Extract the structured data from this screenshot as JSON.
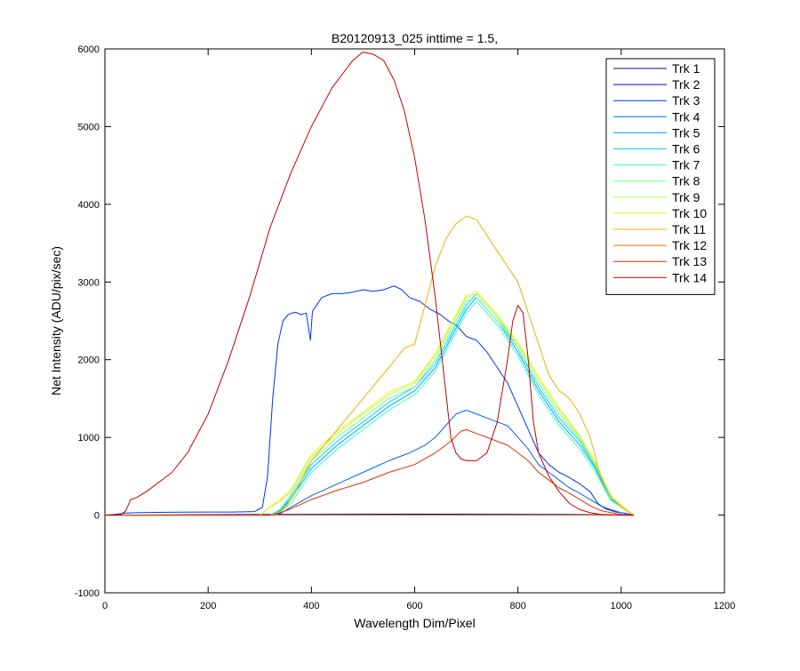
{
  "chart_data": {
    "type": "line",
    "title": "B20120913_025 inttime = 1.5,",
    "xlabel": "Wavelength Dim/Pixel",
    "ylabel": "Net Intensity (ADU/pix/sec)",
    "xlim": [
      0,
      1200
    ],
    "ylim": [
      -1000,
      6000
    ],
    "xticks": [
      0,
      200,
      400,
      600,
      800,
      1000,
      1200
    ],
    "yticks": [
      -1000,
      0,
      1000,
      2000,
      3000,
      4000,
      5000,
      6000
    ],
    "grid": false,
    "legend_position": "top-right",
    "series": [
      {
        "name": "Trk 1",
        "color": "#00008F",
        "x": [
          0,
          300,
          600,
          900,
          1024
        ],
        "y": [
          0,
          5,
          10,
          5,
          0
        ]
      },
      {
        "name": "Trk 2",
        "color": "#0000C8",
        "x": [
          0,
          300,
          600,
          900,
          1024
        ],
        "y": [
          0,
          8,
          12,
          8,
          0
        ]
      },
      {
        "name": "Trk 3",
        "color": "#0030FF",
        "x": [
          0,
          20,
          40,
          60,
          100,
          150,
          200,
          250,
          290,
          305,
          315,
          325,
          335,
          345,
          355,
          362,
          370,
          380,
          390,
          398,
          402,
          410,
          420,
          440,
          460,
          480,
          500,
          520,
          540,
          560,
          575,
          590,
          610,
          630,
          650,
          665,
          680,
          700,
          720,
          740,
          760,
          780,
          800,
          820,
          840,
          860,
          880,
          900,
          920,
          940,
          955,
          970,
          990,
          1010,
          1024
        ],
        "y": [
          0,
          10,
          25,
          30,
          35,
          38,
          40,
          40,
          45,
          100,
          500,
          1500,
          2200,
          2500,
          2580,
          2600,
          2610,
          2580,
          2600,
          2250,
          2620,
          2700,
          2800,
          2850,
          2850,
          2870,
          2900,
          2880,
          2900,
          2950,
          2900,
          2800,
          2750,
          2650,
          2580,
          2500,
          2450,
          2300,
          2250,
          2100,
          1900,
          1700,
          1400,
          1100,
          800,
          650,
          550,
          480,
          400,
          300,
          150,
          80,
          40,
          20,
          0
        ]
      },
      {
        "name": "Trk 4",
        "color": "#0060FF",
        "x": [
          0,
          320,
          340,
          360,
          400,
          450,
          500,
          550,
          590,
          620,
          640,
          660,
          680,
          700,
          720,
          740,
          760,
          780,
          800,
          820,
          840,
          860,
          880,
          900,
          920,
          940,
          960,
          980,
          1000,
          1024
        ],
        "y": [
          0,
          0,
          20,
          100,
          250,
          400,
          550,
          700,
          800,
          900,
          1000,
          1150,
          1300,
          1350,
          1300,
          1250,
          1200,
          1150,
          1000,
          850,
          650,
          550,
          450,
          350,
          280,
          200,
          120,
          70,
          30,
          0
        ]
      },
      {
        "name": "Trk 5",
        "color": "#00A0FF",
        "x": [
          0,
          320,
          340,
          360,
          400,
          450,
          500,
          550,
          600,
          640,
          680,
          700,
          720,
          760,
          800,
          840,
          880,
          920,
          950,
          980,
          1024
        ],
        "y": [
          0,
          0,
          60,
          200,
          600,
          900,
          1150,
          1400,
          1600,
          1900,
          2400,
          2650,
          2800,
          2500,
          2100,
          1600,
          1200,
          900,
          600,
          200,
          0
        ]
      },
      {
        "name": "Trk 6",
        "color": "#00D8F0",
        "x": [
          0,
          320,
          340,
          360,
          400,
          450,
          500,
          550,
          600,
          640,
          680,
          700,
          720,
          760,
          800,
          840,
          880,
          920,
          950,
          980,
          1024
        ],
        "y": [
          0,
          0,
          70,
          230,
          650,
          950,
          1200,
          1450,
          1650,
          1950,
          2450,
          2700,
          2850,
          2550,
          2150,
          1650,
          1250,
          950,
          620,
          210,
          0
        ]
      },
      {
        "name": "Trk 7",
        "color": "#30FFC8",
        "x": [
          0,
          320,
          340,
          360,
          400,
          450,
          500,
          550,
          600,
          640,
          680,
          700,
          720,
          760,
          800,
          840,
          880,
          920,
          950,
          980,
          1024
        ],
        "y": [
          0,
          0,
          40,
          150,
          550,
          850,
          1100,
          1350,
          1550,
          1850,
          2350,
          2600,
          2750,
          2450,
          2050,
          1550,
          1150,
          850,
          560,
          190,
          0
        ]
      },
      {
        "name": "Trk 8",
        "color": "#70FF8C",
        "x": [
          0,
          320,
          340,
          360,
          400,
          450,
          500,
          550,
          600,
          640,
          680,
          700,
          720,
          760,
          800,
          840,
          880,
          920,
          950,
          980,
          1024
        ],
        "y": [
          0,
          0,
          80,
          260,
          700,
          1000,
          1250,
          1500,
          1650,
          2000,
          2500,
          2750,
          2800,
          2500,
          2150,
          1700,
          1300,
          980,
          640,
          220,
          0
        ]
      },
      {
        "name": "Trk 9",
        "color": "#B0FF50",
        "x": [
          0,
          300,
          320,
          340,
          360,
          400,
          450,
          500,
          550,
          600,
          640,
          680,
          700,
          720,
          760,
          800,
          840,
          880,
          920,
          950,
          980,
          1024
        ],
        "y": [
          0,
          0,
          100,
          180,
          300,
          750,
          1050,
          1300,
          1550,
          1700,
          2050,
          2550,
          2800,
          2850,
          2550,
          2200,
          1750,
          1350,
          1000,
          660,
          230,
          0
        ]
      },
      {
        "name": "Trk 10",
        "color": "#F0F010",
        "x": [
          0,
          300,
          320,
          340,
          360,
          400,
          450,
          500,
          550,
          600,
          640,
          680,
          700,
          720,
          760,
          800,
          840,
          880,
          920,
          950,
          980,
          1024
        ],
        "y": [
          0,
          0,
          110,
          200,
          320,
          780,
          1080,
          1320,
          1580,
          1720,
          2080,
          2580,
          2820,
          2880,
          2580,
          2220,
          1780,
          1380,
          1020,
          680,
          240,
          0
        ]
      },
      {
        "name": "Trk 11",
        "color": "#F0B000",
        "x": [
          0,
          330,
          350,
          370,
          400,
          450,
          500,
          550,
          580,
          600,
          620,
          640,
          660,
          680,
          700,
          720,
          740,
          760,
          780,
          800,
          820,
          840,
          860,
          880,
          900,
          920,
          940,
          960,
          980,
          1000,
          1024
        ],
        "y": [
          0,
          0,
          100,
          300,
          700,
          1100,
          1500,
          1900,
          2150,
          2200,
          2700,
          3200,
          3550,
          3750,
          3850,
          3800,
          3600,
          3400,
          3200,
          3000,
          2600,
          2200,
          1800,
          1600,
          1500,
          1300,
          1000,
          500,
          250,
          100,
          0
        ]
      },
      {
        "name": "Trk 12",
        "color": "#F07000",
        "x": [
          0,
          1024
        ],
        "y": [
          0,
          0
        ]
      },
      {
        "name": "Trk 13",
        "color": "#E03000",
        "x": [
          0,
          320,
          340,
          360,
          400,
          450,
          500,
          550,
          600,
          640,
          670,
          690,
          700,
          720,
          740,
          760,
          780,
          800,
          820,
          840,
          860,
          880,
          900,
          920,
          940,
          960,
          980,
          1000,
          1024
        ],
        "y": [
          0,
          0,
          30,
          80,
          200,
          320,
          420,
          550,
          650,
          800,
          950,
          1080,
          1100,
          1050,
          1000,
          950,
          900,
          800,
          700,
          550,
          450,
          350,
          280,
          200,
          120,
          60,
          30,
          10,
          0
        ]
      },
      {
        "name": "Trk 14",
        "color": "#C00000",
        "x": [
          0,
          30,
          40,
          50,
          60,
          80,
          100,
          130,
          160,
          200,
          240,
          280,
          320,
          360,
          400,
          440,
          480,
          500,
          520,
          540,
          560,
          580,
          600,
          620,
          640,
          660,
          670,
          680,
          690,
          700,
          720,
          740,
          760,
          780,
          790,
          800,
          810,
          820,
          830,
          840,
          860,
          880,
          900,
          920,
          940,
          960,
          980,
          1000,
          1024
        ],
        "y": [
          0,
          5,
          50,
          200,
          220,
          300,
          400,
          550,
          800,
          1300,
          2000,
          2800,
          3700,
          4400,
          5000,
          5500,
          5850,
          5960,
          5930,
          5850,
          5600,
          5200,
          4600,
          3800,
          2800,
          1600,
          1000,
          800,
          720,
          700,
          700,
          800,
          1200,
          2000,
          2500,
          2700,
          2600,
          2000,
          1200,
          800,
          500,
          300,
          150,
          70,
          30,
          10,
          3,
          0,
          0
        ]
      }
    ]
  }
}
